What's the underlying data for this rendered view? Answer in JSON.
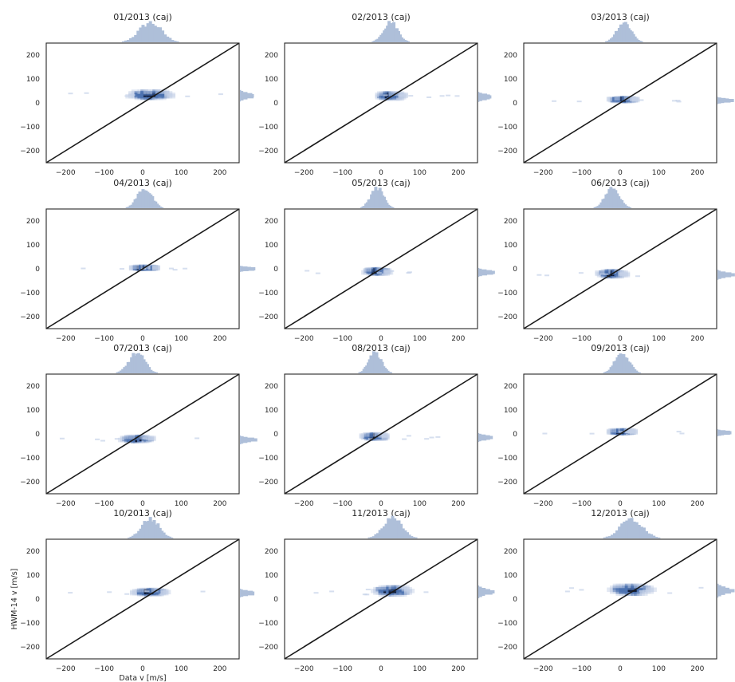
{
  "figure": {
    "xlabel": "Data v [m/s]",
    "ylabel": "HWM-14 v [m/s]",
    "colors": {
      "dense": "#0f1d3d",
      "mid": "#4c72b0",
      "light": "#c5d2e8",
      "hist": "#aebfd9",
      "line": "#1a1a1a"
    }
  },
  "chart_data": [
    {
      "type": "heatmap",
      "title": "01/2013 (caj)",
      "xlim": [
        -250,
        250
      ],
      "ylim": [
        -250,
        250
      ],
      "xticks": [
        -200,
        -100,
        0,
        100,
        200
      ],
      "yticks": [
        -200,
        -100,
        0,
        100,
        200
      ],
      "reference_line": "y = x",
      "center": [
        20,
        30
      ],
      "spread": [
        70,
        22
      ]
    },
    {
      "type": "heatmap",
      "title": "02/2013 (caj)",
      "xlim": [
        -250,
        250
      ],
      "ylim": [
        -250,
        250
      ],
      "xticks": [
        -200,
        -100,
        0,
        100,
        200
      ],
      "yticks": [
        -200,
        -100,
        0,
        100,
        200
      ],
      "reference_line": "y = x",
      "center": [
        25,
        25
      ],
      "spread": [
        45,
        18
      ]
    },
    {
      "type": "heatmap",
      "title": "03/2013 (caj)",
      "xlim": [
        -250,
        250
      ],
      "ylim": [
        -250,
        250
      ],
      "xticks": [
        -200,
        -100,
        0,
        100,
        200
      ],
      "yticks": [
        -200,
        -100,
        0,
        100,
        200
      ],
      "reference_line": "y = x",
      "center": [
        10,
        10
      ],
      "spread": [
        45,
        10
      ]
    },
    {
      "type": "heatmap",
      "title": "04/2013 (caj)",
      "xlim": [
        -250,
        250
      ],
      "ylim": [
        -250,
        250
      ],
      "xticks": [
        -200,
        -100,
        0,
        100,
        200
      ],
      "yticks": [
        -200,
        -100,
        0,
        100,
        200
      ],
      "reference_line": "y = x",
      "center": [
        5,
        0
      ],
      "spread": [
        45,
        8
      ]
    },
    {
      "type": "heatmap",
      "title": "05/2013 (caj)",
      "xlim": [
        -250,
        250
      ],
      "ylim": [
        -250,
        250
      ],
      "xticks": [
        -200,
        -100,
        0,
        100,
        200
      ],
      "yticks": [
        -200,
        -100,
        0,
        100,
        200
      ],
      "reference_line": "y = x",
      "center": [
        -10,
        -15
      ],
      "spread": [
        40,
        15
      ]
    },
    {
      "type": "heatmap",
      "title": "06/2013 (caj)",
      "xlim": [
        -250,
        250
      ],
      "ylim": [
        -250,
        250
      ],
      "xticks": [
        -200,
        -100,
        0,
        100,
        200
      ],
      "yticks": [
        -200,
        -100,
        0,
        100,
        200
      ],
      "reference_line": "y = x",
      "center": [
        -20,
        -25
      ],
      "spread": [
        45,
        18
      ]
    },
    {
      "type": "heatmap",
      "title": "07/2013 (caj)",
      "xlim": [
        -250,
        250
      ],
      "ylim": [
        -250,
        250
      ],
      "xticks": [
        -200,
        -100,
        0,
        100,
        200
      ],
      "yticks": [
        -200,
        -100,
        0,
        100,
        200
      ],
      "reference_line": "y = x",
      "center": [
        -15,
        -25
      ],
      "spread": [
        50,
        15
      ]
    },
    {
      "type": "heatmap",
      "title": "08/2013 (caj)",
      "xlim": [
        -250,
        250
      ],
      "ylim": [
        -250,
        250
      ],
      "xticks": [
        -200,
        -100,
        0,
        100,
        200
      ],
      "yticks": [
        -200,
        -100,
        0,
        100,
        200
      ],
      "reference_line": "y = x",
      "center": [
        -15,
        -15
      ],
      "spread": [
        40,
        15
      ]
    },
    {
      "type": "heatmap",
      "title": "09/2013 (caj)",
      "xlim": [
        -250,
        250
      ],
      "ylim": [
        -250,
        250
      ],
      "xticks": [
        -200,
        -100,
        0,
        100,
        200
      ],
      "yticks": [
        -200,
        -100,
        0,
        100,
        200
      ],
      "reference_line": "y = x",
      "center": [
        5,
        5
      ],
      "spread": [
        45,
        10
      ]
    },
    {
      "type": "heatmap",
      "title": "10/2013 (caj)",
      "xlim": [
        -250,
        250
      ],
      "ylim": [
        -250,
        250
      ],
      "xticks": [
        -200,
        -100,
        0,
        100,
        200
      ],
      "yticks": [
        -200,
        -100,
        0,
        100,
        200
      ],
      "reference_line": "y = x",
      "center": [
        20,
        25
      ],
      "spread": [
        55,
        15
      ]
    },
    {
      "type": "heatmap",
      "title": "11/2013 (caj)",
      "xlim": [
        -250,
        250
      ],
      "ylim": [
        -250,
        250
      ],
      "xticks": [
        -200,
        -100,
        0,
        100,
        200
      ],
      "yticks": [
        -200,
        -100,
        0,
        100,
        200
      ],
      "reference_line": "y = x",
      "center": [
        30,
        30
      ],
      "spread": [
        60,
        25
      ]
    },
    {
      "type": "heatmap",
      "title": "12/2013 (caj)",
      "xlim": [
        -250,
        250
      ],
      "ylim": [
        -250,
        250
      ],
      "xticks": [
        -200,
        -100,
        0,
        100,
        200
      ],
      "yticks": [
        -200,
        -100,
        0,
        100,
        200
      ],
      "reference_line": "y = x",
      "center": [
        30,
        35
      ],
      "spread": [
        70,
        28
      ]
    }
  ]
}
